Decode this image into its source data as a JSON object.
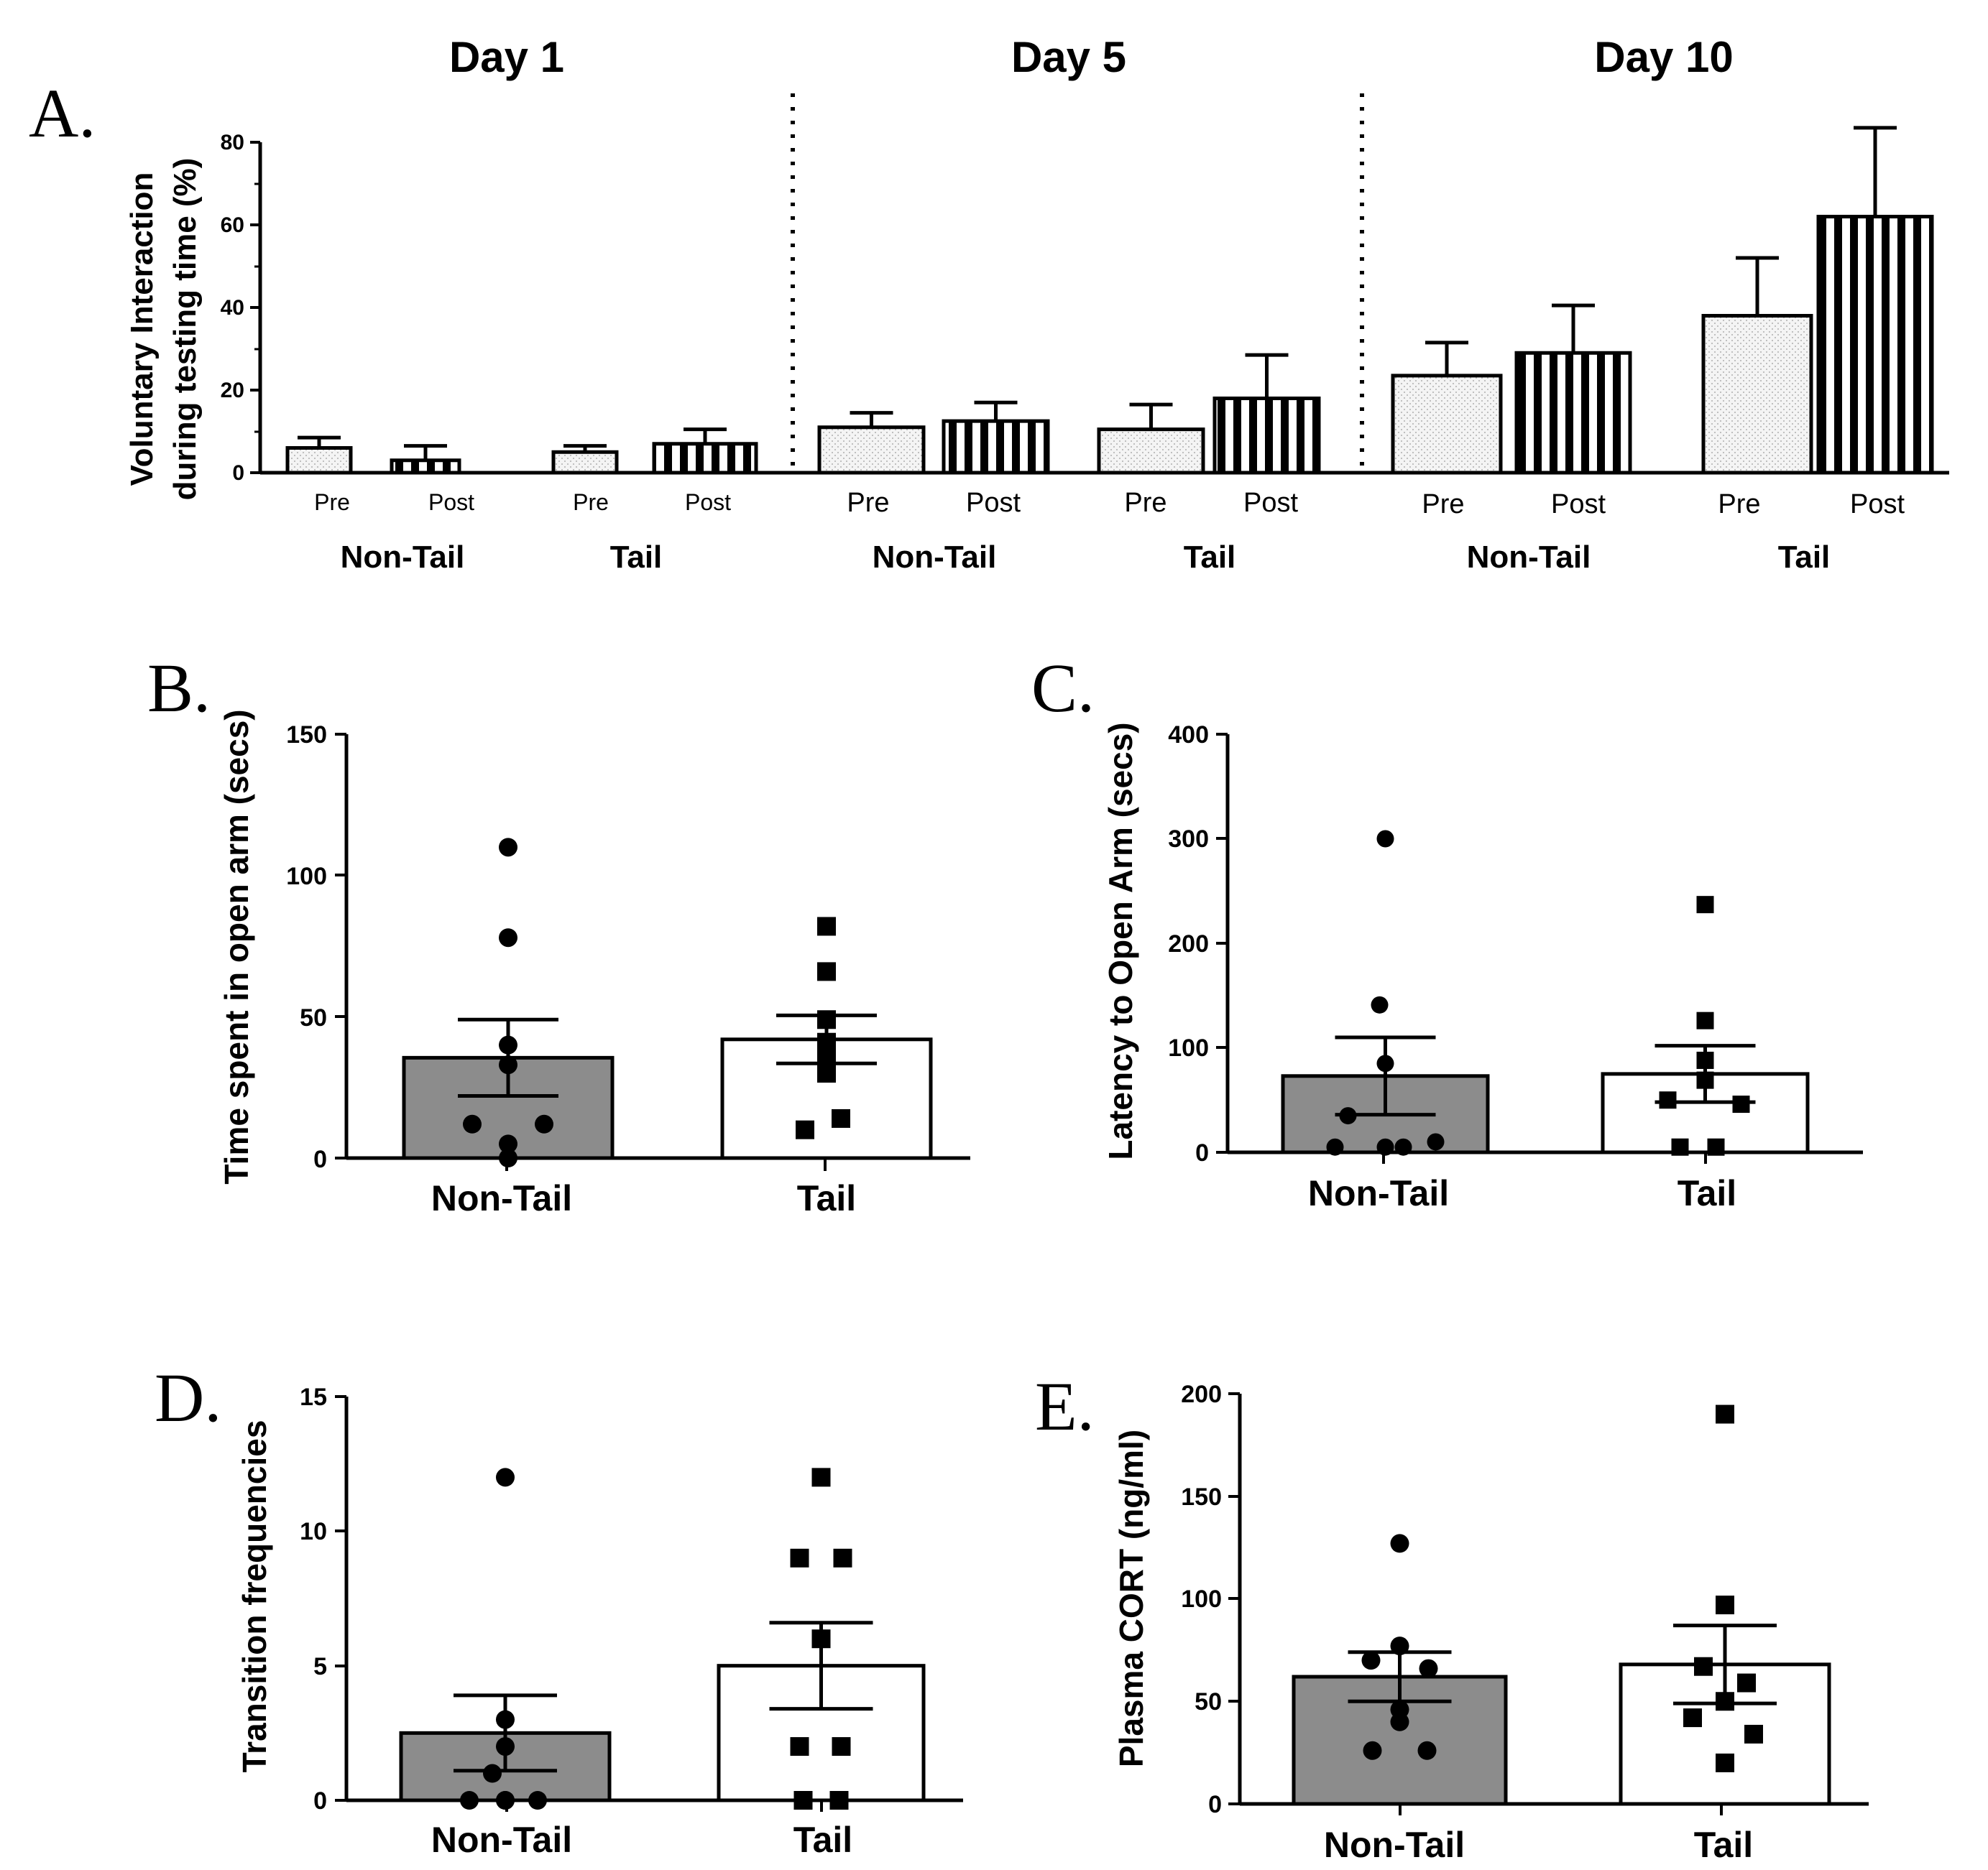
{
  "chart_data": [
    {
      "panel": "A.",
      "type": "bar",
      "ylabel_line1": "Voluntary Interaction",
      "ylabel_line2": "during testing time  (%)",
      "ylim": [
        0,
        80
      ],
      "yticks": [
        "0",
        "20",
        "40",
        "60",
        "80"
      ],
      "days": [
        {
          "title": "Day 1",
          "groups": [
            {
              "name": "Non-Tail",
              "bars": [
                {
                  "label": "Pre",
                  "value": 6,
                  "sem": 2.5
                },
                {
                  "label": "Post",
                  "value": 3,
                  "sem": 3.5
                }
              ]
            },
            {
              "name": "Tail",
              "bars": [
                {
                  "label": "Pre",
                  "value": 5,
                  "sem": 1.5
                },
                {
                  "label": "Post",
                  "value": 7,
                  "sem": 3.5
                }
              ]
            }
          ]
        },
        {
          "title": "Day 5",
          "groups": [
            {
              "name": "Non-Tail",
              "bars": [
                {
                  "label": "Pre",
                  "value": 11,
                  "sem": 3.5
                },
                {
                  "label": "Post",
                  "value": 12.5,
                  "sem": 4.5
                }
              ]
            },
            {
              "name": "Tail",
              "bars": [
                {
                  "label": "Pre",
                  "value": 10.5,
                  "sem": 6
                },
                {
                  "label": "Post",
                  "value": 18,
                  "sem": 10.5
                }
              ]
            }
          ]
        },
        {
          "title": "Day 10",
          "groups": [
            {
              "name": "Non-Tail",
              "bars": [
                {
                  "label": "Pre",
                  "value": 23.5,
                  "sem": 8
                },
                {
                  "label": "Post",
                  "value": 29,
                  "sem": 11.5
                }
              ]
            },
            {
              "name": "Tail",
              "bars": [
                {
                  "label": "Pre",
                  "value": 38,
                  "sem": 14
                },
                {
                  "label": "Post",
                  "value": 62,
                  "sem": 21.5
                }
              ]
            }
          ]
        }
      ]
    },
    {
      "panel": "B.",
      "type": "bar",
      "ylabel": "Time spent in open arm (secs)",
      "ylim": [
        0,
        150
      ],
      "yticks": [
        "0",
        "50",
        "100",
        "150"
      ],
      "categories": [
        "Non-Tail",
        "Tail"
      ],
      "values": [
        35.5,
        42
      ],
      "sem": [
        13.5,
        8.5
      ],
      "points": [
        [
          110,
          78,
          40,
          33,
          12,
          12,
          5,
          0
        ],
        [
          82,
          66,
          49,
          41,
          35,
          30,
          14,
          10
        ]
      ]
    },
    {
      "panel": "C.",
      "type": "bar",
      "ylabel": "Latency to Open  Arm (secs)",
      "ylim": [
        0,
        400
      ],
      "yticks": [
        "0",
        "100",
        "200",
        "300",
        "400"
      ],
      "categories": [
        "Non-Tail",
        "Tail"
      ],
      "values": [
        73,
        75
      ],
      "sem": [
        37,
        27
      ],
      "points": [
        [
          300,
          141,
          85,
          35,
          10,
          5,
          5,
          5
        ],
        [
          237,
          126,
          88,
          69,
          50,
          46,
          5,
          5
        ]
      ]
    },
    {
      "panel": "D.",
      "type": "bar",
      "ylabel": "Transition frequencies",
      "ylim": [
        0,
        15
      ],
      "yticks": [
        "0",
        "5",
        "10",
        "15"
      ],
      "categories": [
        "Non-Tail",
        "Tail"
      ],
      "values": [
        2.5,
        5
      ],
      "sem": [
        1.4,
        1.6
      ],
      "points": [
        [
          12,
          3,
          2,
          1,
          0,
          0,
          0,
          0
        ],
        [
          12,
          9,
          9,
          6,
          2,
          2,
          0,
          0
        ]
      ]
    },
    {
      "panel": "E.",
      "type": "bar",
      "ylabel": "Plasma CORT (ng/ml)",
      "ylim": [
        0,
        200
      ],
      "yticks": [
        "0",
        "50",
        "100",
        "150",
        "200"
      ],
      "categories": [
        "Non-Tail",
        "Tail"
      ],
      "values": [
        62,
        68
      ],
      "sem": [
        12,
        19
      ],
      "points": [
        [
          127,
          77,
          70,
          66,
          46,
          40,
          26,
          26
        ],
        [
          190,
          97,
          67,
          59,
          50,
          42,
          34,
          20
        ]
      ]
    }
  ]
}
